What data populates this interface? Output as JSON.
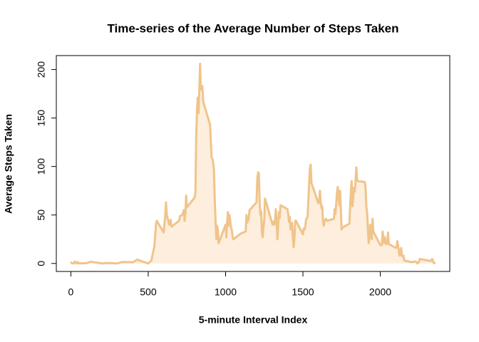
{
  "chart_data": {
    "type": "area",
    "title": "Time-series of the Average Number of Steps Taken",
    "x_label": "5-minute Interval Index",
    "y_label": "Average Steps Taken",
    "line_color": "#f0c48a",
    "fill_color": "#fdeedd",
    "xlim": [
      -94.2,
      2449.2
    ],
    "ylim": [
      -8.25,
      214.4
    ],
    "xticks": [
      0,
      500,
      1000,
      1500,
      2000
    ],
    "yticks": [
      0,
      50,
      100,
      150,
      200
    ],
    "x": [
      0,
      5,
      10,
      15,
      20,
      25,
      30,
      35,
      40,
      45,
      50,
      55,
      100,
      130,
      200,
      230,
      300,
      330,
      400,
      430,
      445,
      500,
      520,
      540,
      550,
      555,
      600,
      610,
      615,
      620,
      625,
      635,
      640,
      645,
      650,
      700,
      705,
      720,
      730,
      735,
      740,
      745,
      750,
      800,
      805,
      810,
      815,
      820,
      825,
      830,
      835,
      840,
      845,
      850,
      855,
      900,
      905,
      910,
      915,
      920,
      925,
      930,
      935,
      940,
      945,
      950,
      955,
      1000,
      1005,
      1010,
      1015,
      1020,
      1025,
      1030,
      1035,
      1040,
      1045,
      1050,
      1100,
      1130,
      1135,
      1140,
      1145,
      1150,
      1155,
      1200,
      1205,
      1210,
      1215,
      1220,
      1225,
      1230,
      1235,
      1240,
      1245,
      1250,
      1255,
      1300,
      1305,
      1310,
      1315,
      1320,
      1325,
      1330,
      1335,
      1340,
      1345,
      1350,
      1355,
      1400,
      1405,
      1410,
      1415,
      1420,
      1425,
      1430,
      1435,
      1440,
      1445,
      1450,
      1455,
      1500,
      1505,
      1510,
      1515,
      1520,
      1525,
      1530,
      1535,
      1540,
      1545,
      1550,
      1555,
      1600,
      1605,
      1610,
      1615,
      1620,
      1625,
      1630,
      1635,
      1640,
      1645,
      1650,
      1655,
      1700,
      1705,
      1710,
      1715,
      1720,
      1725,
      1730,
      1735,
      1740,
      1745,
      1750,
      1755,
      1800,
      1805,
      1810,
      1815,
      1820,
      1825,
      1830,
      1835,
      1840,
      1845,
      1850,
      1855,
      1900,
      1905,
      1910,
      1915,
      1920,
      1925,
      1930,
      1935,
      1940,
      1945,
      1950,
      1955,
      2000,
      2005,
      2010,
      2015,
      2020,
      2025,
      2030,
      2035,
      2040,
      2045,
      2050,
      2055,
      2100,
      2105,
      2110,
      2115,
      2120,
      2125,
      2130,
      2135,
      2140,
      2145,
      2150,
      2155,
      2200,
      2230,
      2240,
      2250,
      2255,
      2300,
      2330,
      2335,
      2340,
      2345,
      2350,
      2355
    ],
    "values": [
      1.7,
      0.3,
      0.1,
      0.2,
      0.1,
      2.1,
      0.5,
      0.9,
      0,
      1.5,
      0.3,
      0.1,
      0.3,
      1.8,
      0,
      0.5,
      0,
      1.5,
      1.2,
      4,
      3,
      0,
      3,
      18,
      40,
      44,
      32,
      50,
      63,
      50,
      47,
      40,
      44,
      45,
      38,
      44,
      49,
      50,
      55,
      44,
      52,
      70,
      58,
      68,
      73,
      130,
      157,
      171,
      155,
      177,
      206,
      180,
      179,
      183,
      167,
      143,
      124,
      109,
      108,
      104,
      96,
      66,
      45,
      25,
      39,
      35,
      21,
      40,
      27,
      42,
      53,
      39,
      50,
      44,
      37,
      35,
      28,
      25,
      31,
      33,
      50,
      42,
      44,
      47,
      55,
      63,
      87,
      94,
      93,
      63,
      50,
      54,
      32,
      27,
      38,
      45,
      67,
      42,
      40,
      43,
      40,
      46,
      56,
      42,
      25,
      40,
      53,
      47,
      60,
      56,
      51,
      43,
      48,
      35,
      38,
      42,
      27,
      17,
      26,
      44,
      44,
      30,
      36,
      35,
      38,
      45,
      47,
      48,
      65,
      82,
      98,
      102,
      83,
      62,
      64,
      75,
      63,
      57,
      59,
      43,
      39,
      45,
      45,
      46,
      44,
      46,
      56,
      51,
      61,
      73,
      79,
      68,
      60,
      75,
      57,
      35,
      37,
      41,
      58,
      74,
      85,
      59,
      68,
      78,
      74,
      85,
      99,
      86,
      85,
      84,
      78,
      58,
      53,
      36,
      21,
      27,
      40,
      30,
      25,
      46,
      33,
      19,
      19,
      19,
      33,
      27,
      21,
      27,
      21,
      20,
      21,
      32,
      20,
      16,
      17,
      23,
      19,
      12,
      8,
      14,
      16,
      8,
      7,
      8,
      3,
      1.5,
      2,
      0,
      1.6,
      4.6,
      3.3,
      2.6,
      4.7,
      3.3,
      0.6,
      0.2,
      1.1
    ]
  }
}
